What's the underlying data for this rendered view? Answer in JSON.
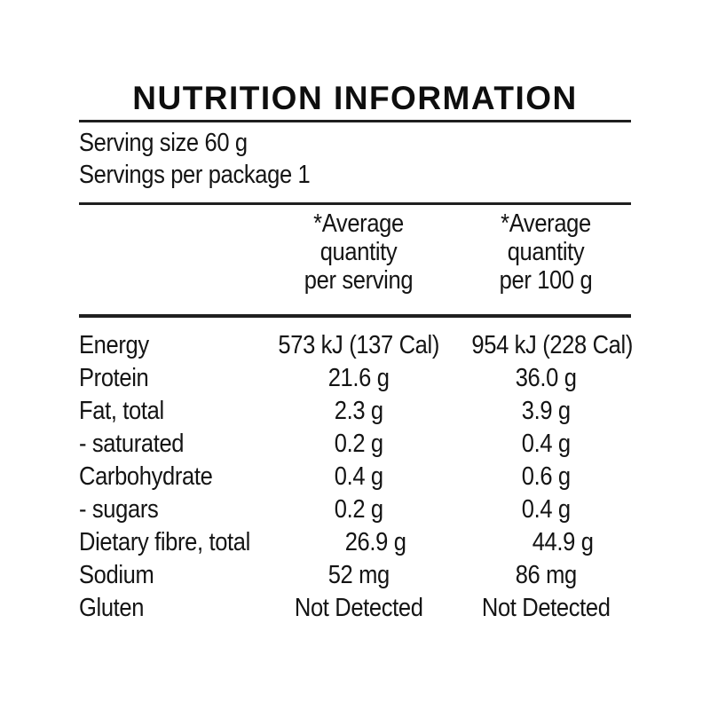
{
  "panel": {
    "title": "NUTRITION INFORMATION",
    "serving_size_line": "Serving size 60 g",
    "servings_per_package_line": "Servings per package 1"
  },
  "table": {
    "columns": [
      {
        "lines": [
          "*Average",
          "quantity",
          "per serving"
        ]
      },
      {
        "lines": [
          "*Average",
          "quantity",
          "per 100 g"
        ]
      }
    ],
    "rows": [
      {
        "label": "Energy",
        "per_serving": "573 kJ (137 Cal)",
        "per_100g": "954 kJ (228 Cal)"
      },
      {
        "label": "Protein",
        "per_serving": "21.6 g",
        "per_100g": "36.0 g"
      },
      {
        "label": "Fat, total",
        "per_serving": "2.3 g",
        "per_100g": "3.9 g"
      },
      {
        "label": "- saturated",
        "per_serving": "0.2 g",
        "per_100g": "0.4 g"
      },
      {
        "label": "Carbohydrate",
        "per_serving": "0.4 g",
        "per_100g": "0.6 g"
      },
      {
        "label": "- sugars",
        "per_serving": "0.2 g",
        "per_100g": "0.4 g"
      },
      {
        "label": "Dietary fibre, total",
        "per_serving": "26.9 g",
        "per_100g": "44.9 g"
      },
      {
        "label": "Sodium",
        "per_serving": "52 mg",
        "per_100g": "86 mg"
      },
      {
        "label": "Gluten",
        "per_serving": "Not Detected",
        "per_100g": "Not Detected"
      }
    ]
  },
  "colors": {
    "background": "#ffffff",
    "text": "#141414",
    "rule": "#1f1f1f"
  }
}
